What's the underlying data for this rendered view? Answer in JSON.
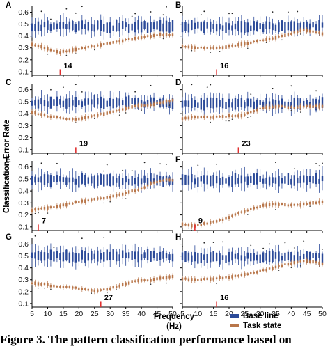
{
  "figure": {
    "ylabel": "Classification Error Rate",
    "xlabel_line1": "Frequency",
    "xlabel_line2": "(Hz)",
    "caption": "Figure 3. The pattern classification performance based on",
    "colors": {
      "baseline": "#2b4a99",
      "task": "#b8764a",
      "marker": "#e03030"
    }
  },
  "chart_data": {
    "type": "box",
    "x_ticks": [
      5,
      10,
      15,
      20,
      25,
      30,
      35,
      40,
      45,
      50
    ],
    "y_ticks": [
      "0.1",
      "0.2",
      "0.3",
      "0.4",
      "0.5",
      "0.6"
    ],
    "xlim": [
      5,
      50
    ],
    "ylim": [
      0.07,
      0.65
    ],
    "legend": {
      "position": "bottom-right",
      "entries": [
        {
          "name": "Base line",
          "color": "#2b4a99"
        },
        {
          "name": "Task state",
          "color": "#b8764a"
        }
      ]
    },
    "panels": [
      {
        "label": "A",
        "marker_freq": 14,
        "marker_label": "14",
        "baseline_level": 0.48,
        "task_curve": [
          [
            5,
            0.33
          ],
          [
            8,
            0.31
          ],
          [
            11,
            0.28
          ],
          [
            14,
            0.26
          ],
          [
            17,
            0.28
          ],
          [
            22,
            0.3
          ],
          [
            28,
            0.33
          ],
          [
            34,
            0.36
          ],
          [
            40,
            0.39
          ],
          [
            45,
            0.41
          ],
          [
            50,
            0.41
          ]
        ]
      },
      {
        "label": "B",
        "marker_freq": 16,
        "marker_label": "16",
        "baseline_level": 0.48,
        "task_curve": [
          [
            5,
            0.31
          ],
          [
            10,
            0.3
          ],
          [
            16,
            0.3
          ],
          [
            22,
            0.32
          ],
          [
            28,
            0.35
          ],
          [
            34,
            0.38
          ],
          [
            40,
            0.42
          ],
          [
            44,
            0.45
          ],
          [
            47,
            0.44
          ],
          [
            50,
            0.42
          ]
        ]
      },
      {
        "label": "C",
        "marker_freq": 19,
        "marker_label": "19",
        "baseline_level": 0.49,
        "task_curve": [
          [
            5,
            0.41
          ],
          [
            10,
            0.38
          ],
          [
            15,
            0.36
          ],
          [
            19,
            0.35
          ],
          [
            23,
            0.37
          ],
          [
            28,
            0.4
          ],
          [
            33,
            0.43
          ],
          [
            38,
            0.46
          ],
          [
            44,
            0.48
          ],
          [
            50,
            0.51
          ]
        ]
      },
      {
        "label": "D",
        "marker_freq": 23,
        "marker_label": "23",
        "baseline_level": 0.48,
        "task_curve": [
          [
            5,
            0.36
          ],
          [
            10,
            0.37
          ],
          [
            15,
            0.37
          ],
          [
            20,
            0.38
          ],
          [
            23,
            0.38
          ],
          [
            27,
            0.41
          ],
          [
            31,
            0.45
          ],
          [
            36,
            0.46
          ],
          [
            41,
            0.45
          ],
          [
            46,
            0.46
          ],
          [
            50,
            0.46
          ]
        ]
      },
      {
        "label": "E",
        "marker_freq": 7,
        "marker_label": "7",
        "baseline_level": 0.49,
        "task_curve": [
          [
            5,
            0.24
          ],
          [
            10,
            0.26
          ],
          [
            15,
            0.28
          ],
          [
            20,
            0.31
          ],
          [
            25,
            0.33
          ],
          [
            30,
            0.35
          ],
          [
            35,
            0.38
          ],
          [
            40,
            0.42
          ],
          [
            44,
            0.47
          ],
          [
            47,
            0.49
          ],
          [
            50,
            0.49
          ]
        ]
      },
      {
        "label": "F",
        "marker_freq": 9,
        "marker_label": "9",
        "baseline_level": 0.49,
        "task_curve": [
          [
            5,
            0.12
          ],
          [
            9,
            0.11
          ],
          [
            13,
            0.13
          ],
          [
            18,
            0.16
          ],
          [
            22,
            0.2
          ],
          [
            27,
            0.25
          ],
          [
            31,
            0.28
          ],
          [
            35,
            0.29
          ],
          [
            40,
            0.28
          ],
          [
            45,
            0.29
          ],
          [
            50,
            0.31
          ]
        ]
      },
      {
        "label": "G",
        "marker_freq": 27,
        "marker_label": "27",
        "baseline_level": 0.5,
        "task_curve": [
          [
            5,
            0.27
          ],
          [
            9,
            0.26
          ],
          [
            13,
            0.24
          ],
          [
            17,
            0.24
          ],
          [
            21,
            0.22
          ],
          [
            25,
            0.21
          ],
          [
            29,
            0.22
          ],
          [
            33,
            0.25
          ],
          [
            38,
            0.29
          ],
          [
            44,
            0.3
          ],
          [
            50,
            0.33
          ]
        ]
      },
      {
        "label": "H",
        "marker_freq": 16,
        "marker_label": "16",
        "baseline_level": 0.49,
        "task_curve": [
          [
            5,
            0.31
          ],
          [
            10,
            0.3
          ],
          [
            16,
            0.31
          ],
          [
            22,
            0.33
          ],
          [
            28,
            0.36
          ],
          [
            34,
            0.4
          ],
          [
            40,
            0.44
          ],
          [
            44,
            0.46
          ],
          [
            47,
            0.45
          ],
          [
            50,
            0.43
          ]
        ]
      }
    ]
  }
}
